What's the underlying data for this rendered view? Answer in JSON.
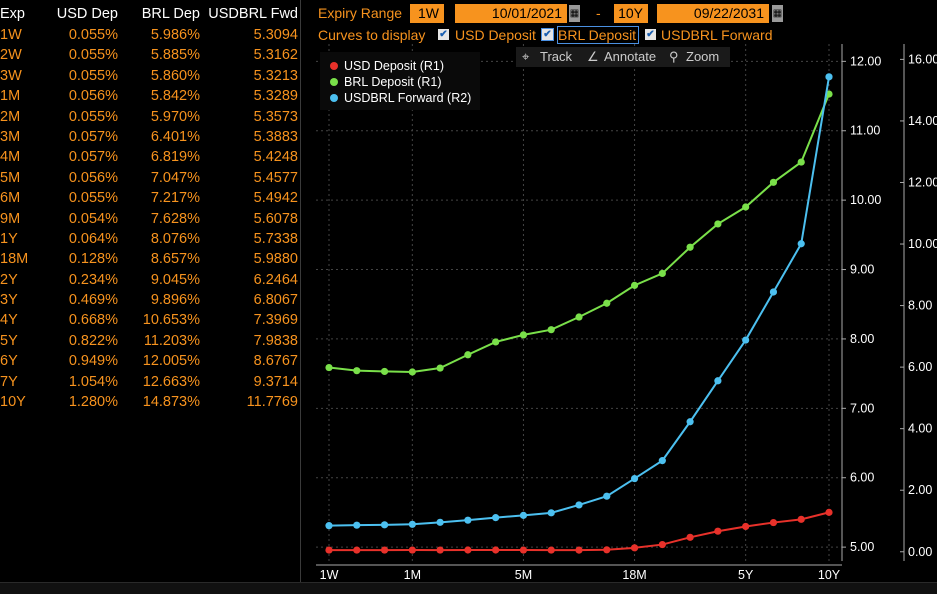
{
  "table": {
    "headers": [
      "Exp",
      "USD Dep",
      "BRL Dep",
      "USDBRL Fwd"
    ],
    "rows": [
      [
        "1W",
        "0.055%",
        "5.986%",
        "5.3094"
      ],
      [
        "2W",
        "0.055%",
        "5.885%",
        "5.3162"
      ],
      [
        "3W",
        "0.055%",
        "5.860%",
        "5.3213"
      ],
      [
        "1M",
        "0.056%",
        "5.842%",
        "5.3289"
      ],
      [
        "2M",
        "0.055%",
        "5.970%",
        "5.3573"
      ],
      [
        "3M",
        "0.057%",
        "6.401%",
        "5.3883"
      ],
      [
        "4M",
        "0.057%",
        "6.819%",
        "5.4248"
      ],
      [
        "5M",
        "0.056%",
        "7.047%",
        "5.4577"
      ],
      [
        "6M",
        "0.055%",
        "7.217%",
        "5.4942"
      ],
      [
        "9M",
        "0.054%",
        "7.628%",
        "5.6078"
      ],
      [
        "1Y",
        "0.064%",
        "8.076%",
        "5.7338"
      ],
      [
        "18M",
        "0.128%",
        "8.657%",
        "5.9880"
      ],
      [
        "2Y",
        "0.234%",
        "9.045%",
        "6.2464"
      ],
      [
        "3Y",
        "0.469%",
        "9.896%",
        "6.8067"
      ],
      [
        "4Y",
        "0.668%",
        "10.653%",
        "7.3969"
      ],
      [
        "5Y",
        "0.822%",
        "11.203%",
        "7.9838"
      ],
      [
        "6Y",
        "0.949%",
        "12.005%",
        "8.6767"
      ],
      [
        "7Y",
        "1.054%",
        "12.663%",
        "9.3714"
      ],
      [
        "10Y",
        "1.280%",
        "14.873%",
        "11.7769"
      ]
    ]
  },
  "controls": {
    "expiry_label": "Expiry Range",
    "start_tenor": "1W",
    "start_date": "10/01/2021",
    "dash": "-",
    "end_tenor": "10Y",
    "end_date": "09/22/2031",
    "curves_label": "Curves to display",
    "curves": [
      {
        "label": "USD Deposit",
        "checked": true
      },
      {
        "label": "BRL Deposit",
        "checked": true
      },
      {
        "label": "USDBRL Forward",
        "checked": true
      }
    ],
    "check_glyph": "✔",
    "calendar_glyph": "▦"
  },
  "tools": {
    "track": "Track",
    "annotate": "Annotate",
    "zoom": "Zoom",
    "track_icon": "⌖",
    "annotate_icon": "∠",
    "zoom_icon": "⚲"
  },
  "colors": {
    "orange": "#f7931e",
    "usd": "#e8312a",
    "brl": "#7ae04a",
    "fwd": "#4cc0f0"
  },
  "chart_data": {
    "type": "line",
    "x_tick_labels": [
      "1W",
      "1M",
      "5M",
      "18M",
      "5Y",
      "10Y"
    ],
    "categories": [
      "1W",
      "2W",
      "3W",
      "1M",
      "2M",
      "3M",
      "4M",
      "5M",
      "6M",
      "9M",
      "1Y",
      "18M",
      "2Y",
      "3Y",
      "4Y",
      "5Y",
      "6Y",
      "7Y",
      "10Y"
    ],
    "series": [
      {
        "name": "USD Deposit (R1)",
        "axis": "R1",
        "values": [
          0.055,
          0.055,
          0.055,
          0.056,
          0.055,
          0.057,
          0.057,
          0.056,
          0.055,
          0.054,
          0.064,
          0.128,
          0.234,
          0.469,
          0.668,
          0.822,
          0.949,
          1.054,
          1.28
        ]
      },
      {
        "name": "BRL Deposit (R1)",
        "axis": "R1",
        "values": [
          5.986,
          5.885,
          5.86,
          5.842,
          5.97,
          6.401,
          6.819,
          7.047,
          7.217,
          7.628,
          8.076,
          8.657,
          9.045,
          9.896,
          10.653,
          11.203,
          12.005,
          12.663,
          14.873
        ]
      },
      {
        "name": "USDBRL Forward (R2)",
        "axis": "R2",
        "values": [
          5.3094,
          5.3162,
          5.3213,
          5.3289,
          5.3573,
          5.3883,
          5.4248,
          5.4577,
          5.4942,
          5.6078,
          5.7338,
          5.988,
          6.2464,
          6.8067,
          7.3969,
          7.9838,
          8.6767,
          9.3714,
          11.7769
        ]
      }
    ],
    "r1_ticks": [
      "16.00",
      "14.00",
      "12.00",
      "10.00",
      "8.00",
      "6.00",
      "4.00",
      "2.00",
      "0.00"
    ],
    "r2_ticks": [
      "12.00",
      "11.00",
      "10.00",
      "9.00",
      "8.00",
      "7.00",
      "6.00",
      "5.00"
    ],
    "r1_range": [
      -0.3,
      16.5
    ],
    "r2_range": [
      4.8,
      12.25
    ],
    "legend_position": "top-left",
    "grid": true
  }
}
